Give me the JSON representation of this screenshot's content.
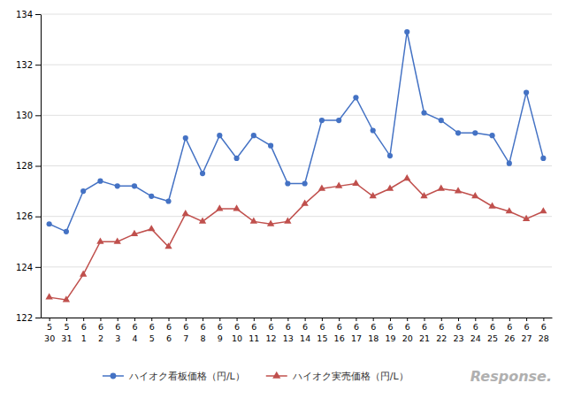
{
  "chart_data": {
    "type": "line",
    "categories": [
      [
        "5",
        "30"
      ],
      [
        "5",
        "31"
      ],
      [
        "6",
        "1"
      ],
      [
        "6",
        "2"
      ],
      [
        "6",
        "3"
      ],
      [
        "6",
        "4"
      ],
      [
        "6",
        "5"
      ],
      [
        "6",
        "6"
      ],
      [
        "6",
        "7"
      ],
      [
        "6",
        "8"
      ],
      [
        "6",
        "9"
      ],
      [
        "6",
        "10"
      ],
      [
        "6",
        "11"
      ],
      [
        "6",
        "12"
      ],
      [
        "6",
        "13"
      ],
      [
        "6",
        "14"
      ],
      [
        "6",
        "15"
      ],
      [
        "6",
        "16"
      ],
      [
        "6",
        "17"
      ],
      [
        "6",
        "18"
      ],
      [
        "6",
        "19"
      ],
      [
        "6",
        "20"
      ],
      [
        "6",
        "21"
      ],
      [
        "6",
        "22"
      ],
      [
        "6",
        "23"
      ],
      [
        "6",
        "24"
      ],
      [
        "6",
        "25"
      ],
      [
        "6",
        "26"
      ],
      [
        "6",
        "27"
      ],
      [
        "6",
        "28"
      ]
    ],
    "series": [
      {
        "name": "ハイオク看板価格（円/L）",
        "color": "#4472C4",
        "marker": "circle",
        "values": [
          125.7,
          125.4,
          127.0,
          127.4,
          127.2,
          127.2,
          126.8,
          126.6,
          129.1,
          127.7,
          129.2,
          128.3,
          129.2,
          128.8,
          127.3,
          127.3,
          129.8,
          129.8,
          130.7,
          129.4,
          128.4,
          133.3,
          130.1,
          129.8,
          129.3,
          129.3,
          129.2,
          128.1,
          130.9,
          128.3
        ]
      },
      {
        "name": "ハイオク実売価格（円/L）",
        "color": "#C0504D",
        "marker": "triangle",
        "values": [
          122.8,
          122.7,
          123.7,
          125.0,
          125.0,
          125.3,
          125.5,
          124.8,
          126.1,
          125.8,
          126.3,
          126.3,
          125.8,
          125.7,
          125.8,
          126.5,
          127.1,
          127.2,
          127.3,
          126.8,
          127.1,
          127.5,
          126.8,
          127.1,
          127.0,
          126.8,
          126.4,
          126.2,
          125.9,
          126.2
        ]
      }
    ],
    "ylim": [
      122,
      134
    ],
    "yticks": [
      122,
      124,
      126,
      128,
      130,
      132,
      134
    ],
    "grid": true,
    "legend": "bottom",
    "annotations": [
      "Response."
    ]
  }
}
